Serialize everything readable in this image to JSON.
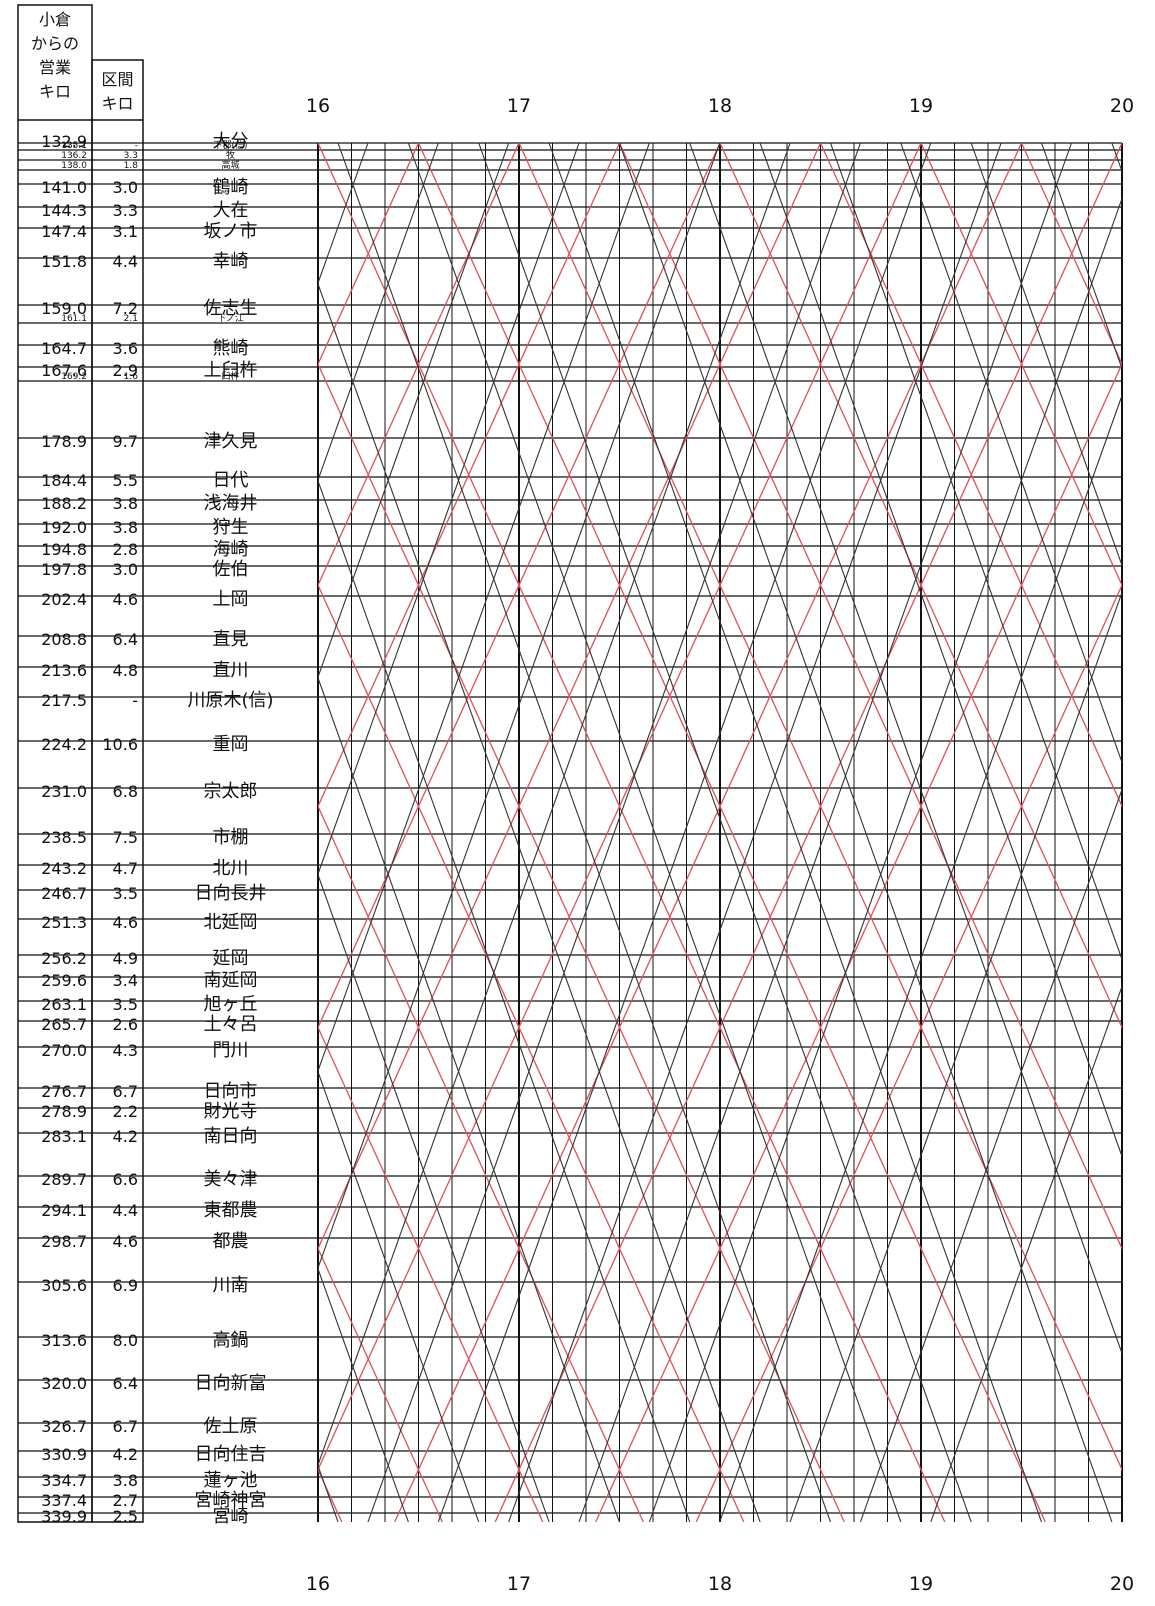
{
  "header": {
    "km_label": [
      "小倉",
      "からの",
      "営業",
      "キロ"
    ],
    "section_label": [
      "区間",
      "キロ"
    ]
  },
  "hours": [
    "16",
    "17",
    "18",
    "19",
    "20"
  ],
  "stations": [
    {
      "km": "132.9",
      "section": "",
      "name": "大分"
    },
    {
      "km": "135.1",
      "section": "-",
      "name": "下郡(信)"
    },
    {
      "km": "136.2",
      "section": "3.3",
      "name": "牧"
    },
    {
      "km": "138.0",
      "section": "1.8",
      "name": "高城"
    },
    {
      "km": "141.0",
      "section": "3.0",
      "name": "鶴崎"
    },
    {
      "km": "144.3",
      "section": "3.3",
      "name": "大在"
    },
    {
      "km": "147.4",
      "section": "3.1",
      "name": "坂ノ市"
    },
    {
      "km": "151.8",
      "section": "4.4",
      "name": "幸崎"
    },
    {
      "km": "159.0",
      "section": "7.2",
      "name": "佐志生"
    },
    {
      "km": "161.1",
      "section": "2.1",
      "name": "下ノ江"
    },
    {
      "km": "164.7",
      "section": "3.6",
      "name": "熊崎"
    },
    {
      "km": "167.6",
      "section": "2.9",
      "name": "上臼杵"
    },
    {
      "km": "169.2",
      "section": "1.6",
      "name": "臼杵"
    },
    {
      "km": "178.9",
      "section": "9.7",
      "name": "津久見"
    },
    {
      "km": "184.4",
      "section": "5.5",
      "name": "日代"
    },
    {
      "km": "188.2",
      "section": "3.8",
      "name": "浅海井"
    },
    {
      "km": "192.0",
      "section": "3.8",
      "name": "狩生"
    },
    {
      "km": "194.8",
      "section": "2.8",
      "name": "海崎"
    },
    {
      "km": "197.8",
      "section": "3.0",
      "name": "佐伯"
    },
    {
      "km": "202.4",
      "section": "4.6",
      "name": "上岡"
    },
    {
      "km": "208.8",
      "section": "6.4",
      "name": "直見"
    },
    {
      "km": "213.6",
      "section": "4.8",
      "name": "直川"
    },
    {
      "km": "217.5",
      "section": "-",
      "name": "川原木(信)"
    },
    {
      "km": "224.2",
      "section": "10.6",
      "name": "重岡"
    },
    {
      "km": "231.0",
      "section": "6.8",
      "name": "宗太郎"
    },
    {
      "km": "238.5",
      "section": "7.5",
      "name": "市棚"
    },
    {
      "km": "243.2",
      "section": "4.7",
      "name": "北川"
    },
    {
      "km": "246.7",
      "section": "3.5",
      "name": "日向長井"
    },
    {
      "km": "251.3",
      "section": "4.6",
      "name": "北延岡"
    },
    {
      "km": "256.2",
      "section": "4.9",
      "name": "延岡"
    },
    {
      "km": "259.6",
      "section": "3.4",
      "name": "南延岡"
    },
    {
      "km": "263.1",
      "section": "3.5",
      "name": "旭ヶ丘"
    },
    {
      "km": "265.7",
      "section": "2.6",
      "name": "土々呂"
    },
    {
      "km": "270.0",
      "section": "4.3",
      "name": "門川"
    },
    {
      "km": "276.7",
      "section": "6.7",
      "name": "日向市"
    },
    {
      "km": "278.9",
      "section": "2.2",
      "name": "財光寺"
    },
    {
      "km": "283.1",
      "section": "4.2",
      "name": "南日向"
    },
    {
      "km": "289.7",
      "section": "6.6",
      "name": "美々津"
    },
    {
      "km": "294.1",
      "section": "4.4",
      "name": "東都農"
    },
    {
      "km": "298.7",
      "section": "4.6",
      "name": "都農"
    },
    {
      "km": "305.6",
      "section": "6.9",
      "name": "川南"
    },
    {
      "km": "313.6",
      "section": "8.0",
      "name": "高鍋"
    },
    {
      "km": "320.0",
      "section": "6.4",
      "name": "日向新富"
    },
    {
      "km": "326.7",
      "section": "6.7",
      "name": "佐土原"
    },
    {
      "km": "330.9",
      "section": "4.2",
      "name": "日向住吉"
    },
    {
      "km": "334.7",
      "section": "3.8",
      "name": "蓮ヶ池"
    },
    {
      "km": "337.4",
      "section": "2.7",
      "name": "宮崎神宮"
    },
    {
      "km": "339.9",
      "section": "2.5",
      "name": "宮崎"
    }
  ]
}
